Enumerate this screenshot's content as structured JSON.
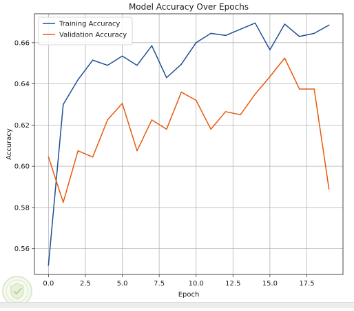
{
  "chart_data": {
    "type": "line",
    "title": "Model Accuracy Over Epochs",
    "xlabel": "Epoch",
    "ylabel": "Accuracy",
    "xlim": [
      -0.95,
      19.95
    ],
    "ylim": [
      0.5475,
      0.674
    ],
    "x_ticks": [
      0.0,
      2.5,
      5.0,
      7.5,
      10.0,
      12.5,
      15.0,
      17.5
    ],
    "x_tick_labels": [
      "0.0",
      "2.5",
      "5.0",
      "7.5",
      "10.0",
      "12.5",
      "15.0",
      "17.5"
    ],
    "y_ticks": [
      0.56,
      0.58,
      0.6,
      0.62,
      0.64,
      0.66
    ],
    "y_tick_labels": [
      "0.56",
      "0.58",
      "0.60",
      "0.62",
      "0.64",
      "0.66"
    ],
    "grid": true,
    "legend_position": "upper-left",
    "x": [
      0,
      1,
      2,
      3,
      4,
      5,
      6,
      7,
      8,
      9,
      10,
      11,
      12,
      13,
      14,
      15,
      16,
      17,
      18,
      19
    ],
    "series": [
      {
        "name": "Training Accuracy",
        "color": "#1f4e96",
        "values": [
          0.552,
          0.63,
          0.642,
          0.6515,
          0.649,
          0.6535,
          0.649,
          0.6585,
          0.643,
          0.6495,
          0.66,
          0.6645,
          0.6635,
          0.6665,
          0.6695,
          0.6565,
          0.669,
          0.663,
          0.6645,
          0.6685
        ]
      },
      {
        "name": "Validation Accuracy",
        "color": "#e8590c",
        "values": [
          0.6045,
          0.5825,
          0.6075,
          0.6045,
          0.6225,
          0.6305,
          0.6075,
          0.6225,
          0.618,
          0.636,
          0.632,
          0.618,
          0.6265,
          0.625,
          0.635,
          0.6435,
          0.6525,
          0.6375,
          0.6375,
          0.589
        ]
      }
    ]
  }
}
